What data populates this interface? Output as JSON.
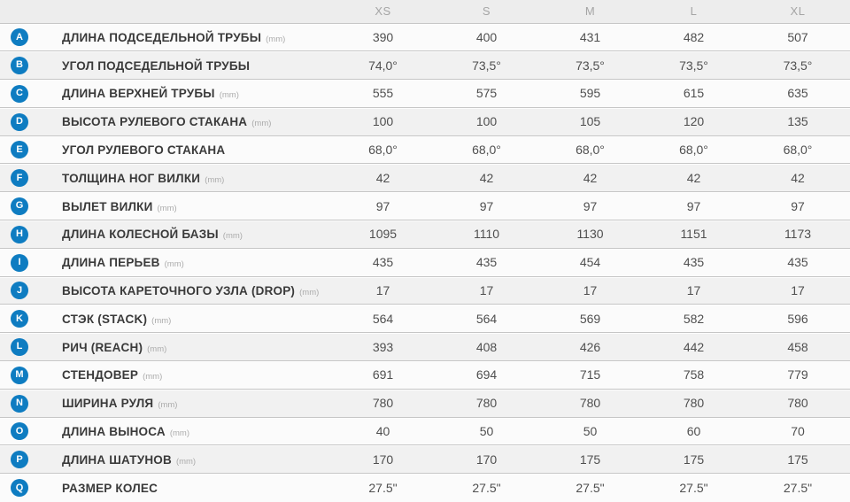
{
  "table": {
    "size_columns": [
      "XS",
      "S",
      "M",
      "L",
      "XL"
    ],
    "rows": [
      {
        "letter": "A",
        "label": "ДЛИНА ПОДСЕДЕЛЬНОЙ ТРУБЫ",
        "unit": "(mm)",
        "values": [
          "390",
          "400",
          "431",
          "482",
          "507"
        ]
      },
      {
        "letter": "B",
        "label": "УГОЛ ПОДСЕДЕЛЬНОЙ ТРУБЫ",
        "unit": "",
        "values": [
          "74,0°",
          "73,5°",
          "73,5°",
          "73,5°",
          "73,5°"
        ]
      },
      {
        "letter": "C",
        "label": "ДЛИНА ВЕРХНЕЙ ТРУБЫ",
        "unit": "(mm)",
        "values": [
          "555",
          "575",
          "595",
          "615",
          "635"
        ]
      },
      {
        "letter": "D",
        "label": "ВЫСОТА РУЛЕВОГО СТАКАНА",
        "unit": "(mm)",
        "values": [
          "100",
          "100",
          "105",
          "120",
          "135"
        ]
      },
      {
        "letter": "E",
        "label": "УГОЛ РУЛЕВОГО СТАКАНА",
        "unit": "",
        "values": [
          "68,0°",
          "68,0°",
          "68,0°",
          "68,0°",
          "68,0°"
        ]
      },
      {
        "letter": "F",
        "label": "ТОЛЩИНА НОГ ВИЛКИ",
        "unit": "(mm)",
        "values": [
          "42",
          "42",
          "42",
          "42",
          "42"
        ]
      },
      {
        "letter": "G",
        "label": "ВЫЛЕТ ВИЛКИ",
        "unit": "(mm)",
        "values": [
          "97",
          "97",
          "97",
          "97",
          "97"
        ]
      },
      {
        "letter": "H",
        "label": "ДЛИНА КОЛЕСНОЙ БАЗЫ",
        "unit": "(mm)",
        "values": [
          "1095",
          "1110",
          "1130",
          "1151",
          "1173"
        ]
      },
      {
        "letter": "I",
        "label": "ДЛИНА ПЕРЬЕВ",
        "unit": "(mm)",
        "values": [
          "435",
          "435",
          "454",
          "435",
          "435"
        ]
      },
      {
        "letter": "J",
        "label": "ВЫСОТА КАРЕТОЧНОГО УЗЛА (DROP)",
        "unit": "(mm)",
        "values": [
          "17",
          "17",
          "17",
          "17",
          "17"
        ]
      },
      {
        "letter": "K",
        "label": "СТЭК (STACK)",
        "unit": "(mm)",
        "values": [
          "564",
          "564",
          "569",
          "582",
          "596"
        ]
      },
      {
        "letter": "L",
        "label": "РИЧ (REACH)",
        "unit": "(mm)",
        "values": [
          "393",
          "408",
          "426",
          "442",
          "458"
        ]
      },
      {
        "letter": "M",
        "label": "СТЕНДОВЕР",
        "unit": "(mm)",
        "values": [
          "691",
          "694",
          "715",
          "758",
          "779"
        ]
      },
      {
        "letter": "N",
        "label": "ШИРИНА РУЛЯ",
        "unit": "(mm)",
        "values": [
          "780",
          "780",
          "780",
          "780",
          "780"
        ]
      },
      {
        "letter": "O",
        "label": "ДЛИНА ВЫНОСА",
        "unit": "(mm)",
        "values": [
          "40",
          "50",
          "50",
          "60",
          "70"
        ]
      },
      {
        "letter": "P",
        "label": "ДЛИНА ШАТУНОВ",
        "unit": "(mm)",
        "values": [
          "170",
          "170",
          "175",
          "175",
          "175"
        ]
      },
      {
        "letter": "Q",
        "label": "РАЗМЕР КОЛЕС",
        "unit": "",
        "values": [
          "27.5\"",
          "27.5\"",
          "27.5\"",
          "27.5\"",
          "27.5\""
        ]
      }
    ]
  },
  "colors": {
    "badge_blue": "#0e7cc1",
    "header_bg": "#ededed",
    "header_text": "#a5a5a5",
    "row_odd_bg": "#fbfbfb",
    "row_even_bg": "#f1f1f1",
    "row_border": "#c6c6c6",
    "label_text": "#3a3a3a",
    "value_text": "#4f4f4f",
    "unit_text": "#ababab"
  }
}
